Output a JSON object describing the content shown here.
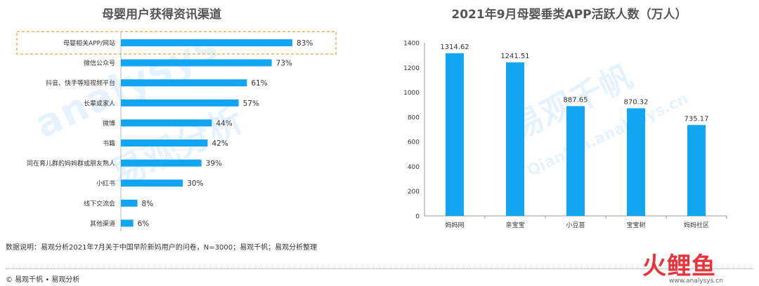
{
  "chart_data": [
    {
      "type": "bar",
      "orientation": "horizontal",
      "title": "母婴用户获得资讯渠道",
      "categories": [
        "母婴相关APP/网站",
        "微信公众号",
        "抖音、快手等短视频平台",
        "长辈或家人",
        "微博",
        "书籍",
        "同在育儿群的妈妈群或朋友熟人",
        "小红书",
        "线下交流会",
        "其他渠道"
      ],
      "values": [
        83,
        73,
        61,
        57,
        44,
        42,
        39,
        30,
        8,
        6
      ],
      "value_labels": [
        "83%",
        "73%",
        "61%",
        "57%",
        "44%",
        "42%",
        "39%",
        "30%",
        "8%",
        "6%"
      ],
      "highlighted_category": "母婴相关APP/网站",
      "xlim": [
        0,
        100
      ],
      "color": "#12a5f2"
    },
    {
      "type": "bar",
      "title": "2021年9月母婴垂类APP活跃人数（万人）",
      "categories": [
        "妈妈网",
        "亲宝宝",
        "小豆苗",
        "宝宝树",
        "妈妈社区"
      ],
      "values": [
        1314.62,
        1241.51,
        887.65,
        870.32,
        735.17
      ],
      "value_labels": [
        "1314.62",
        "1241.51",
        "887.65",
        "870.32",
        "735.17"
      ],
      "ylim": [
        0,
        1400
      ],
      "yticks": [
        "0",
        "200",
        "400",
        "600",
        "800",
        "1000",
        "1200",
        "1400"
      ],
      "color": "#12a5f2"
    }
  ],
  "note": "数据说明：易观分析2021年7月关于中国早阶新妈用户的问卷，N=3000；易观千帆；易观分析整理",
  "footer": "© 易观千帆 • 易观分析",
  "watermark": {
    "left_en": "analysys",
    "left_cn": "易观分析",
    "right_cn": "易观千帆",
    "right_en": "Qianfan.analysys.cn"
  },
  "logo": {
    "cn": "火鲤鱼",
    "en": "www.analysys.cn"
  }
}
